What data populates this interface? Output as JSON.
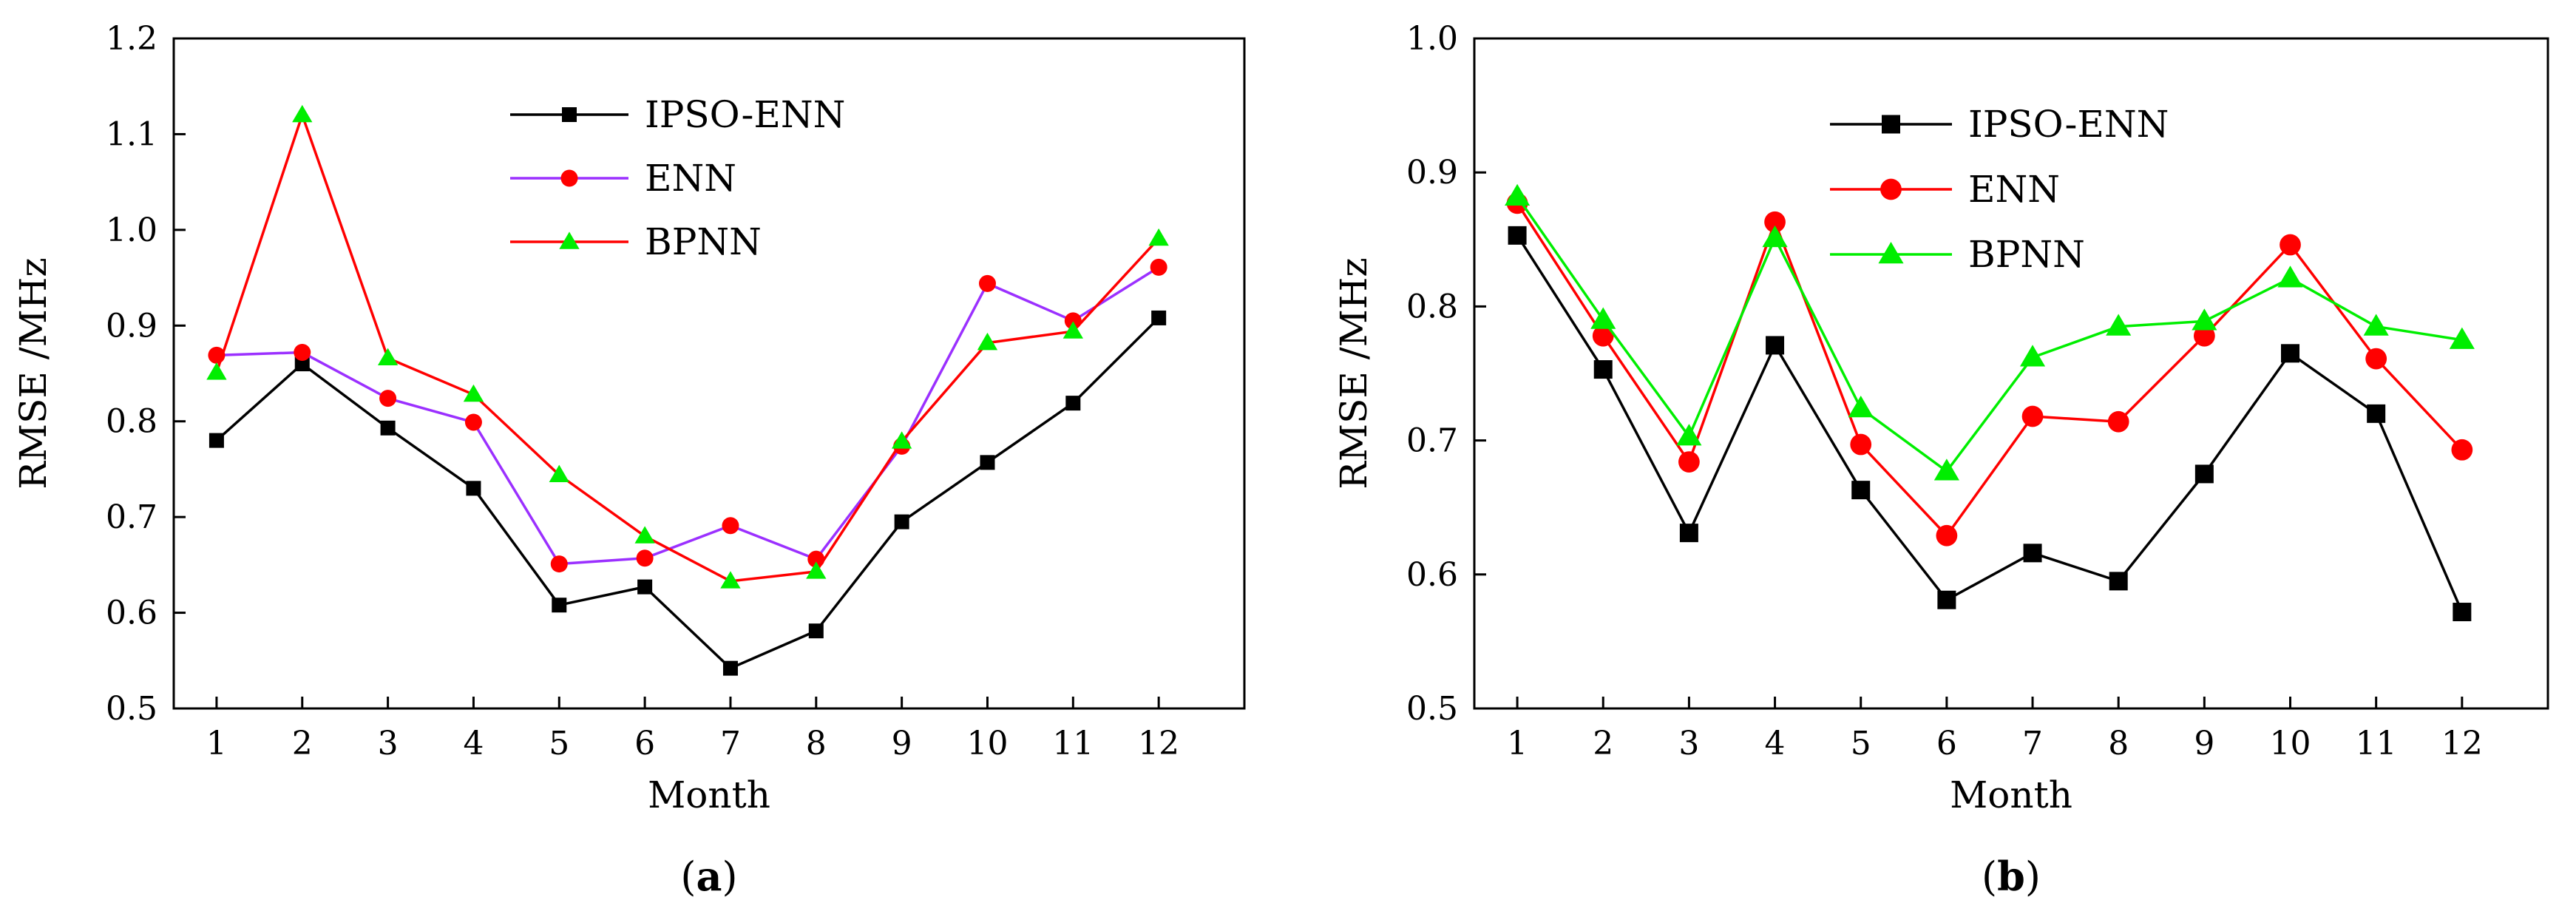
{
  "chart_data": [
    {
      "id": "a",
      "type": "line",
      "panel_label_open": "(",
      "panel_label": "a",
      "panel_label_close": ")",
      "xlabel": "Month",
      "ylabel": "RMSE /MHz",
      "categories": [
        "1",
        "2",
        "3",
        "4",
        "5",
        "6",
        "7",
        "8",
        "9",
        "10",
        "11",
        "12"
      ],
      "ylim": [
        0.5,
        1.2
      ],
      "yticks": [
        "0.5",
        "0.6",
        "0.7",
        "0.8",
        "0.9",
        "1.0",
        "1.1",
        "1.2"
      ],
      "legend_position": "top-center",
      "series": [
        {
          "name": "IPSO-ENN",
          "color": "#000000",
          "line_color": "#000000",
          "marker": "square",
          "values": [
            0.78,
            0.86,
            0.793,
            0.73,
            0.608,
            0.627,
            0.542,
            0.581,
            0.695,
            0.757,
            0.819,
            0.908
          ]
        },
        {
          "name": "ENN",
          "color": "#ff0000",
          "line_color": "#9b30ff",
          "marker": "circle",
          "values": [
            0.869,
            0.872,
            0.824,
            0.799,
            0.651,
            0.657,
            0.691,
            0.656,
            0.774,
            0.944,
            0.905,
            0.961
          ]
        },
        {
          "name": "BPNN",
          "color": "#00ee00",
          "line_color": "#ff0000",
          "marker": "triangle",
          "values": [
            0.851,
            1.12,
            0.866,
            0.828,
            0.744,
            0.68,
            0.633,
            0.643,
            0.779,
            0.882,
            0.894,
            0.991
          ]
        }
      ]
    },
    {
      "id": "b",
      "type": "line",
      "panel_label_open": "(",
      "panel_label": "b",
      "panel_label_close": ")",
      "xlabel": "Month",
      "ylabel": "RMSE /MHz",
      "categories": [
        "1",
        "2",
        "3",
        "4",
        "5",
        "6",
        "7",
        "8",
        "9",
        "10",
        "11",
        "12"
      ],
      "ylim": [
        0.5,
        1.0
      ],
      "yticks": [
        "0.5",
        "0.6",
        "0.7",
        "0.8",
        "0.9",
        "1.0"
      ],
      "legend_position": "top-center",
      "series": [
        {
          "name": "IPSO-ENN",
          "color": "#000000",
          "line_color": "#000000",
          "marker": "square",
          "values": [
            0.853,
            0.753,
            0.631,
            0.771,
            0.663,
            0.581,
            0.616,
            0.595,
            0.675,
            0.765,
            0.72,
            0.572
          ]
        },
        {
          "name": "ENN",
          "color": "#ff0000",
          "line_color": "#ff0000",
          "marker": "circle",
          "values": [
            0.877,
            0.778,
            0.684,
            0.863,
            0.697,
            0.629,
            0.718,
            0.714,
            0.778,
            0.846,
            0.761,
            0.693
          ]
        },
        {
          "name": "BPNN",
          "color": "#00ee00",
          "line_color": "#00ee00",
          "marker": "triangle",
          "values": [
            0.882,
            0.79,
            0.703,
            0.851,
            0.724,
            0.677,
            0.762,
            0.785,
            0.789,
            0.821,
            0.785,
            0.775
          ]
        }
      ]
    }
  ]
}
